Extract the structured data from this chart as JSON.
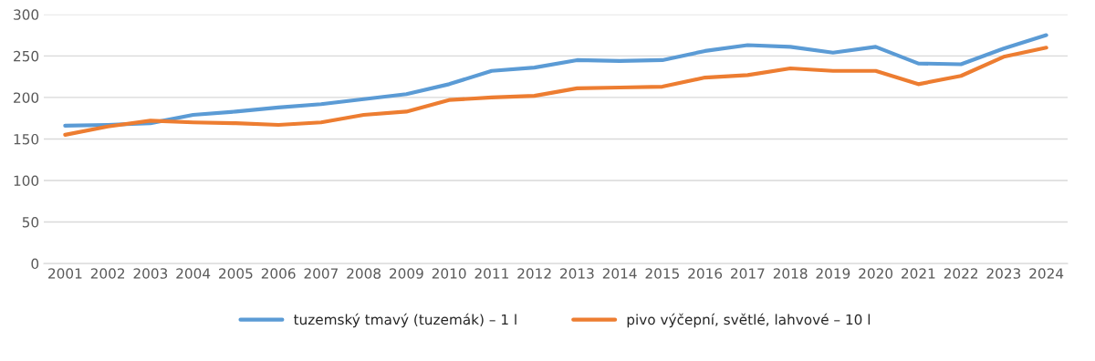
{
  "chart_data": {
    "type": "line",
    "categories": [
      "2001",
      "2002",
      "2003",
      "2004",
      "2005",
      "2006",
      "2007",
      "2008",
      "2009",
      "2010",
      "2011",
      "2012",
      "2013",
      "2014",
      "2015",
      "2016",
      "2017",
      "2018",
      "2019",
      "2020",
      "2021",
      "2022",
      "2023",
      "2024"
    ],
    "series": [
      {
        "name": "tuzemský tmavý (tuzemák) – 1 l",
        "color": "#5b9bd5",
        "values": [
          166,
          167,
          169,
          179,
          183,
          188,
          192,
          198,
          204,
          216,
          232,
          236,
          245,
          244,
          245,
          256,
          263,
          261,
          254,
          261,
          241,
          240,
          259,
          275
        ]
      },
      {
        "name": "pivo výčepní, světlé, lahvové – 10 l",
        "color": "#ed7d31",
        "values": [
          155,
          165,
          172,
          170,
          169,
          167,
          170,
          179,
          183,
          197,
          200,
          202,
          211,
          212,
          213,
          224,
          227,
          235,
          232,
          232,
          216,
          226,
          249,
          260
        ]
      }
    ],
    "ylim": [
      0,
      300
    ],
    "yticks": [
      0,
      50,
      100,
      150,
      200,
      250,
      300
    ],
    "grid": "y",
    "legend": "bottom",
    "marker": "none",
    "line_style": "solid"
  }
}
